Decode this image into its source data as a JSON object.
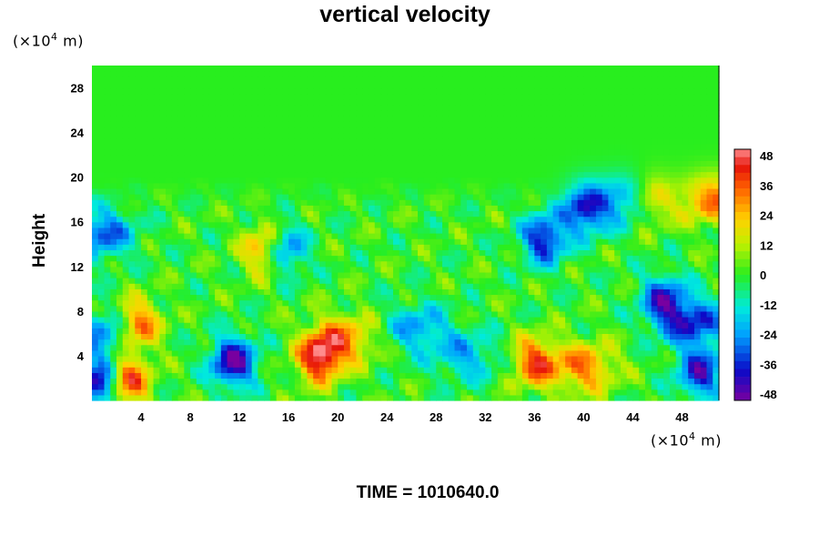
{
  "chart_data": {
    "type": "heatmap",
    "title": "vertical velocity",
    "ylabel": "Height",
    "y_unit_prefix": "(×10",
    "x_unit_prefix": "(×10",
    "unit_exponent": "4",
    "unit_suffix": " m)",
    "footer": "TIME = 1010640.0",
    "xlim": [
      0,
      51
    ],
    "ylim": [
      0,
      30
    ],
    "x_ticks": [
      "4",
      "8",
      "12",
      "16",
      "20",
      "24",
      "28",
      "32",
      "36",
      "40",
      "44",
      "48"
    ],
    "y_ticks": [
      "4",
      "8",
      "12",
      "16",
      "20",
      "24",
      "28"
    ],
    "colorbar": {
      "min": -48,
      "max": 48,
      "ticks": [
        "48",
        "36",
        "24",
        "12",
        "0",
        "-12",
        "-24",
        "-36",
        "-48"
      ]
    },
    "features": [
      {
        "x": 0.6,
        "y": 1.5,
        "value": -46
      },
      {
        "x": 1.2,
        "y": 6.0,
        "value": -26
      },
      {
        "x": 2.8,
        "y": 1.8,
        "value": 42
      },
      {
        "x": 3.7,
        "y": 6.8,
        "value": 38
      },
      {
        "x": 11.5,
        "y": 3.5,
        "value": -46
      },
      {
        "x": 18.5,
        "y": 3.8,
        "value": 42
      },
      {
        "x": 20.5,
        "y": 5.5,
        "value": 28
      },
      {
        "x": 14.2,
        "y": 13.5,
        "value": 38
      },
      {
        "x": 15.5,
        "y": 13.5,
        "value": -38
      },
      {
        "x": 26.5,
        "y": 6.5,
        "value": -22
      },
      {
        "x": 30.5,
        "y": 4.0,
        "value": -20
      },
      {
        "x": 36.0,
        "y": 3.5,
        "value": 36
      },
      {
        "x": 40.0,
        "y": 3.0,
        "value": 30
      },
      {
        "x": 36.8,
        "y": 14.5,
        "value": -38
      },
      {
        "x": 40.2,
        "y": 17.2,
        "value": -38
      },
      {
        "x": 44.2,
        "y": 18.0,
        "value": -30
      },
      {
        "x": 45.5,
        "y": 18.0,
        "value": 36
      },
      {
        "x": 46.5,
        "y": 9.0,
        "value": -36
      },
      {
        "x": 49.0,
        "y": 7.0,
        "value": -34
      },
      {
        "x": 49.5,
        "y": 2.5,
        "value": -38
      },
      {
        "x": 50.5,
        "y": 18.0,
        "value": 30
      },
      {
        "x": 0.8,
        "y": 15.0,
        "value": -30
      }
    ]
  }
}
